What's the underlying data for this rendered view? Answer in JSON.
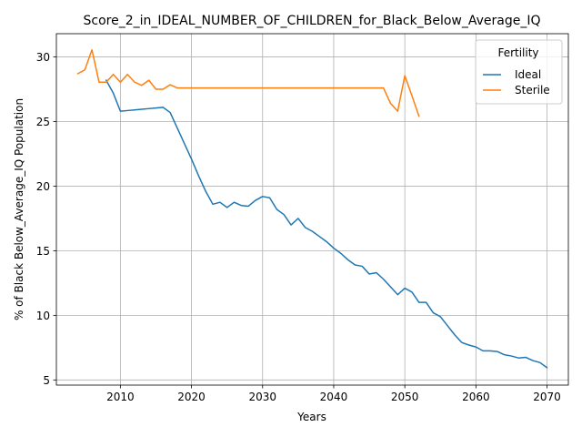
{
  "chart_data": {
    "type": "line",
    "title": "Score_2_in_IDEAL_NUMBER_OF_CHILDREN_for_Black_Below_Average_IQ",
    "xlabel": "Years",
    "ylabel": "% of Black Below_Average_IQ Population",
    "xlim": [
      2001,
      2073
    ],
    "ylim": [
      4.6,
      31.8
    ],
    "xticks": [
      2010,
      2020,
      2030,
      2040,
      2050,
      2060,
      2070
    ],
    "yticks": [
      5,
      10,
      15,
      20,
      25,
      30
    ],
    "grid": true,
    "legend": {
      "title": "Fertility",
      "placement": "top-right"
    },
    "series": [
      {
        "name": "Ideal",
        "color": "#1f77b4",
        "x": [
          2008,
          2009,
          2010,
          2011,
          2012,
          2013,
          2014,
          2015,
          2016,
          2017,
          2018,
          2019,
          2020,
          2021,
          2022,
          2023,
          2024,
          2025,
          2026,
          2027,
          2028,
          2029,
          2030,
          2031,
          2032,
          2033,
          2034,
          2035,
          2036,
          2037,
          2038,
          2039,
          2040,
          2041,
          2042,
          2043,
          2044,
          2045,
          2046,
          2047,
          2048,
          2049,
          2050,
          2051,
          2052,
          2053,
          2054,
          2055,
          2056,
          2057,
          2058,
          2059,
          2060,
          2061,
          2062,
          2063,
          2064,
          2065,
          2066,
          2067,
          2068,
          2069,
          2070
        ],
        "values": [
          28.2,
          27.2,
          25.8,
          25.85,
          25.9,
          25.95,
          26.0,
          26.05,
          26.1,
          25.7,
          24.5,
          23.3,
          22.1,
          20.8,
          19.6,
          18.6,
          18.75,
          18.35,
          18.75,
          18.5,
          18.45,
          18.9,
          19.2,
          19.1,
          18.2,
          17.8,
          17.0,
          17.5,
          16.8,
          16.5,
          16.1,
          15.7,
          15.2,
          14.8,
          14.3,
          13.9,
          13.8,
          13.2,
          13.3,
          12.8,
          12.2,
          11.6,
          12.1,
          11.8,
          11.0,
          11.0,
          10.2,
          9.9,
          9.2,
          8.5,
          7.9,
          7.7,
          7.55,
          7.25,
          7.25,
          7.2,
          6.95,
          6.85,
          6.7,
          6.75,
          6.5,
          6.35,
          5.95
        ]
      },
      {
        "name": "Sterile",
        "color": "#ff7f0e",
        "x": [
          2004,
          2005,
          2006,
          2007,
          2008,
          2009,
          2010,
          2011,
          2012,
          2013,
          2014,
          2015,
          2016,
          2017,
          2018,
          2019,
          2020,
          2021,
          2022,
          2023,
          2024,
          2025,
          2026,
          2027,
          2028,
          2029,
          2030,
          2031,
          2032,
          2033,
          2034,
          2035,
          2036,
          2037,
          2038,
          2039,
          2040,
          2041,
          2042,
          2043,
          2044,
          2045,
          2046,
          2047,
          2048,
          2049,
          2050,
          2051,
          2052
        ],
        "values": [
          28.7,
          29.0,
          30.55,
          28.05,
          28.05,
          28.65,
          28.05,
          28.65,
          28.05,
          27.8,
          28.2,
          27.5,
          27.5,
          27.85,
          27.6,
          27.6,
          27.6,
          27.6,
          27.6,
          27.6,
          27.6,
          27.6,
          27.6,
          27.6,
          27.6,
          27.6,
          27.6,
          27.6,
          27.6,
          27.6,
          27.6,
          27.6,
          27.6,
          27.6,
          27.6,
          27.6,
          27.6,
          27.6,
          27.6,
          27.6,
          27.6,
          27.6,
          27.6,
          27.6,
          26.4,
          25.8,
          28.55,
          27.0,
          25.4
        ]
      }
    ]
  }
}
